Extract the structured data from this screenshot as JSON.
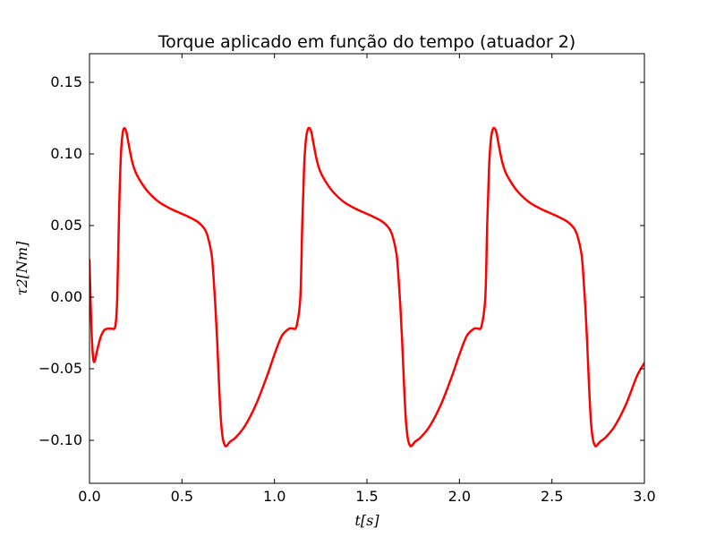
{
  "chart_data": {
    "type": "line",
    "title": "Torque aplicado em função do tempo (atuador 2)",
    "xlabel": "t[s]",
    "ylabel": "τ2[Nm]",
    "xlim": [
      0.0,
      3.0
    ],
    "ylim": [
      -0.13,
      0.17
    ],
    "xticks": [
      0.0,
      0.5,
      1.0,
      1.5,
      2.0,
      2.5,
      3.0
    ],
    "xtick_labels": [
      "0.0",
      "0.5",
      "1.0",
      "1.5",
      "2.0",
      "2.5",
      "3.0"
    ],
    "yticks": [
      -0.1,
      -0.05,
      0.0,
      0.05,
      0.1,
      0.15
    ],
    "ytick_labels": [
      "−0.10",
      "−0.05",
      "0.00",
      "0.05",
      "0.10",
      "0.15"
    ],
    "grid": false,
    "legend": "none",
    "series": [
      {
        "color": "#ff0000",
        "x": [
          0.0,
          0.01,
          0.02,
          0.03,
          0.04,
          0.06,
          0.08,
          0.1,
          0.12,
          0.14,
          0.15,
          0.16,
          0.17,
          0.18,
          0.19,
          0.2,
          0.21,
          0.23,
          0.25,
          0.28,
          0.32,
          0.38,
          0.45,
          0.52,
          0.58,
          0.62,
          0.64,
          0.66,
          0.67,
          0.68,
          0.69,
          0.7,
          0.71,
          0.72,
          0.73,
          0.74,
          0.76,
          0.79,
          0.84,
          0.9,
          0.96,
          1.0,
          1.04,
          1.08,
          1.1,
          1.12,
          1.14,
          1.15,
          1.16,
          1.17,
          1.18,
          1.19,
          1.2,
          1.21,
          1.23,
          1.25,
          1.28,
          1.32,
          1.38,
          1.45,
          1.52,
          1.58,
          1.62,
          1.64,
          1.66,
          1.67,
          1.68,
          1.69,
          1.7,
          1.71,
          1.72,
          1.73,
          1.74,
          1.76,
          1.79,
          1.84,
          1.9,
          1.96,
          2.0,
          2.04,
          2.08,
          2.1,
          2.12,
          2.14,
          2.15,
          2.16,
          2.17,
          2.18,
          2.19,
          2.2,
          2.21,
          2.23,
          2.25,
          2.28,
          2.32,
          2.38,
          2.45,
          2.52,
          2.58,
          2.62,
          2.64,
          2.66,
          2.67,
          2.68,
          2.69,
          2.7,
          2.71,
          2.72,
          2.73,
          2.74,
          2.76,
          2.79,
          2.84,
          2.9,
          2.96,
          3.0
        ],
        "y": [
          0.026,
          -0.02,
          -0.043,
          -0.044,
          -0.038,
          -0.028,
          -0.023,
          -0.022,
          -0.022,
          -0.02,
          0.0,
          0.06,
          0.1,
          0.115,
          0.118,
          0.115,
          0.108,
          0.095,
          0.087,
          0.08,
          0.073,
          0.066,
          0.061,
          0.057,
          0.053,
          0.048,
          0.042,
          0.03,
          0.015,
          -0.005,
          -0.03,
          -0.06,
          -0.085,
          -0.098,
          -0.103,
          -0.104,
          -0.101,
          -0.098,
          -0.09,
          -0.075,
          -0.055,
          -0.04,
          -0.027,
          -0.022,
          -0.022,
          -0.02,
          0.0,
          0.05,
          0.09,
          0.11,
          0.117,
          0.118,
          0.115,
          0.108,
          0.095,
          0.087,
          0.08,
          0.073,
          0.066,
          0.061,
          0.057,
          0.053,
          0.048,
          0.042,
          0.03,
          0.015,
          -0.005,
          -0.03,
          -0.06,
          -0.085,
          -0.098,
          -0.103,
          -0.104,
          -0.101,
          -0.098,
          -0.09,
          -0.075,
          -0.055,
          -0.04,
          -0.027,
          -0.022,
          -0.022,
          -0.02,
          0.0,
          0.05,
          0.09,
          0.11,
          0.117,
          0.118,
          0.115,
          0.108,
          0.095,
          0.087,
          0.08,
          0.073,
          0.066,
          0.061,
          0.057,
          0.053,
          0.048,
          0.042,
          0.03,
          0.015,
          -0.005,
          -0.03,
          -0.06,
          -0.085,
          -0.098,
          -0.103,
          -0.104,
          -0.101,
          -0.098,
          -0.09,
          -0.075,
          -0.055,
          -0.046
        ]
      }
    ]
  }
}
